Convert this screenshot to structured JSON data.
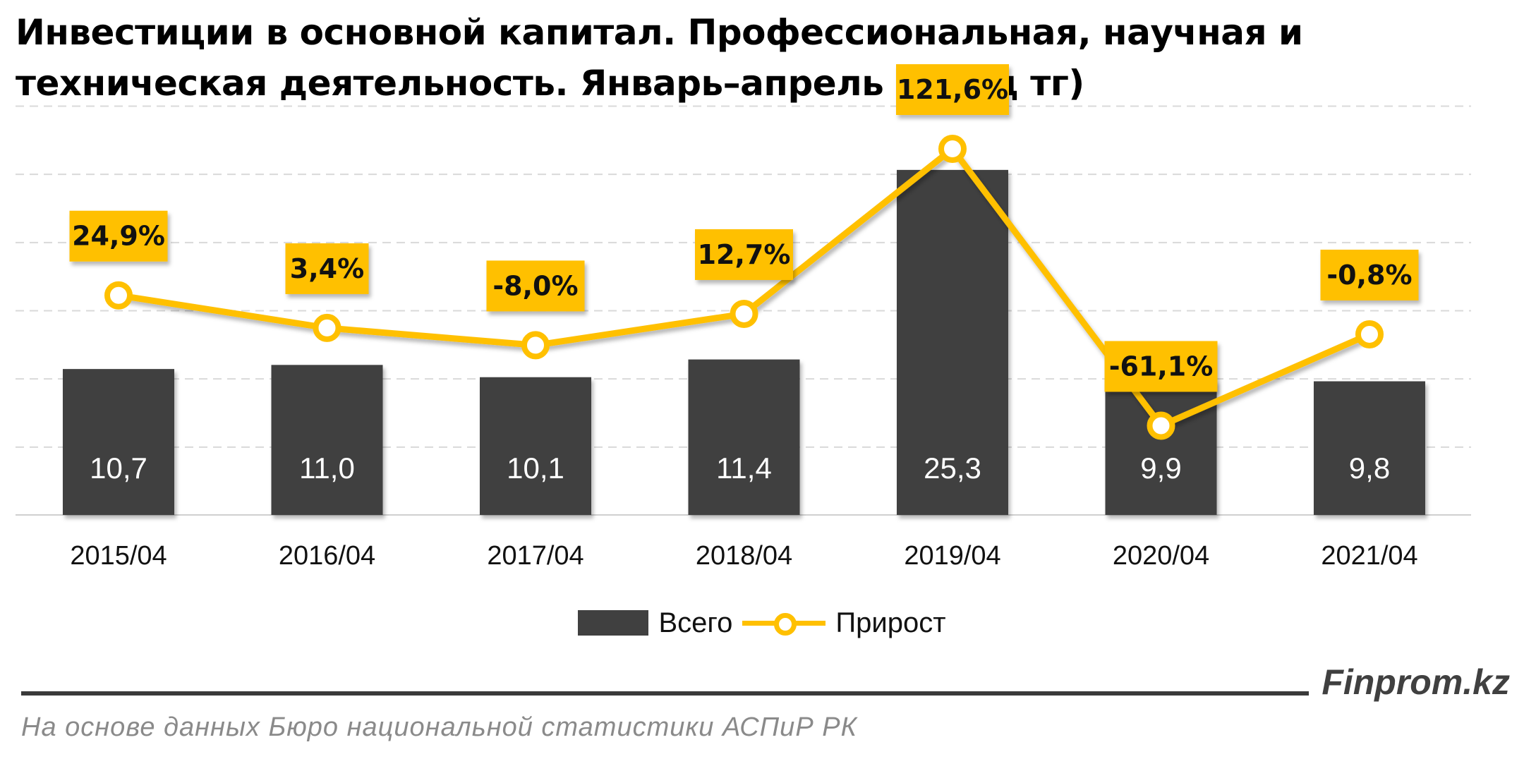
{
  "title": "Инвестиции в основной капитал. Профессиональная, научная и техническая деятельность. Январь–апрель (млрд тг)",
  "colors": {
    "bar": "#404040",
    "line": "#FFC000",
    "label_box": "#FFC000",
    "grid": "#d9d9d9",
    "bar_text": "#ffffff"
  },
  "legend": {
    "bar_label": "Всего",
    "line_label": "Прирост"
  },
  "brand": "Finprom.kz",
  "source": "На основе данных Бюро национальной статистики АСПиР РК",
  "chart_data": {
    "type": "bar",
    "categories": [
      "2015/04",
      "2016/04",
      "2017/04",
      "2018/04",
      "2019/04",
      "2020/04",
      "2021/04"
    ],
    "series": [
      {
        "name": "Всего",
        "type": "bar",
        "axis": "left",
        "values": [
          10.7,
          11.0,
          10.1,
          11.4,
          25.3,
          9.9,
          9.8
        ],
        "labels": [
          "10,7",
          "11,0",
          "10,1",
          "11,4",
          "25,3",
          "9,9",
          "9,8"
        ]
      },
      {
        "name": "Прирост",
        "type": "line",
        "axis": "right",
        "values": [
          24.9,
          3.4,
          -8.0,
          12.7,
          121.6,
          -61.1,
          -0.8
        ],
        "labels": [
          "24,9%",
          "3,4%",
          "-8,0%",
          "12,7%",
          "121,6%",
          "-61,1%",
          "-0,8%"
        ]
      }
    ],
    "ylim_left": [
      0,
      30
    ],
    "ylim_right": [
      -120,
      150
    ],
    "grid": true,
    "legend_position": "bottom"
  }
}
